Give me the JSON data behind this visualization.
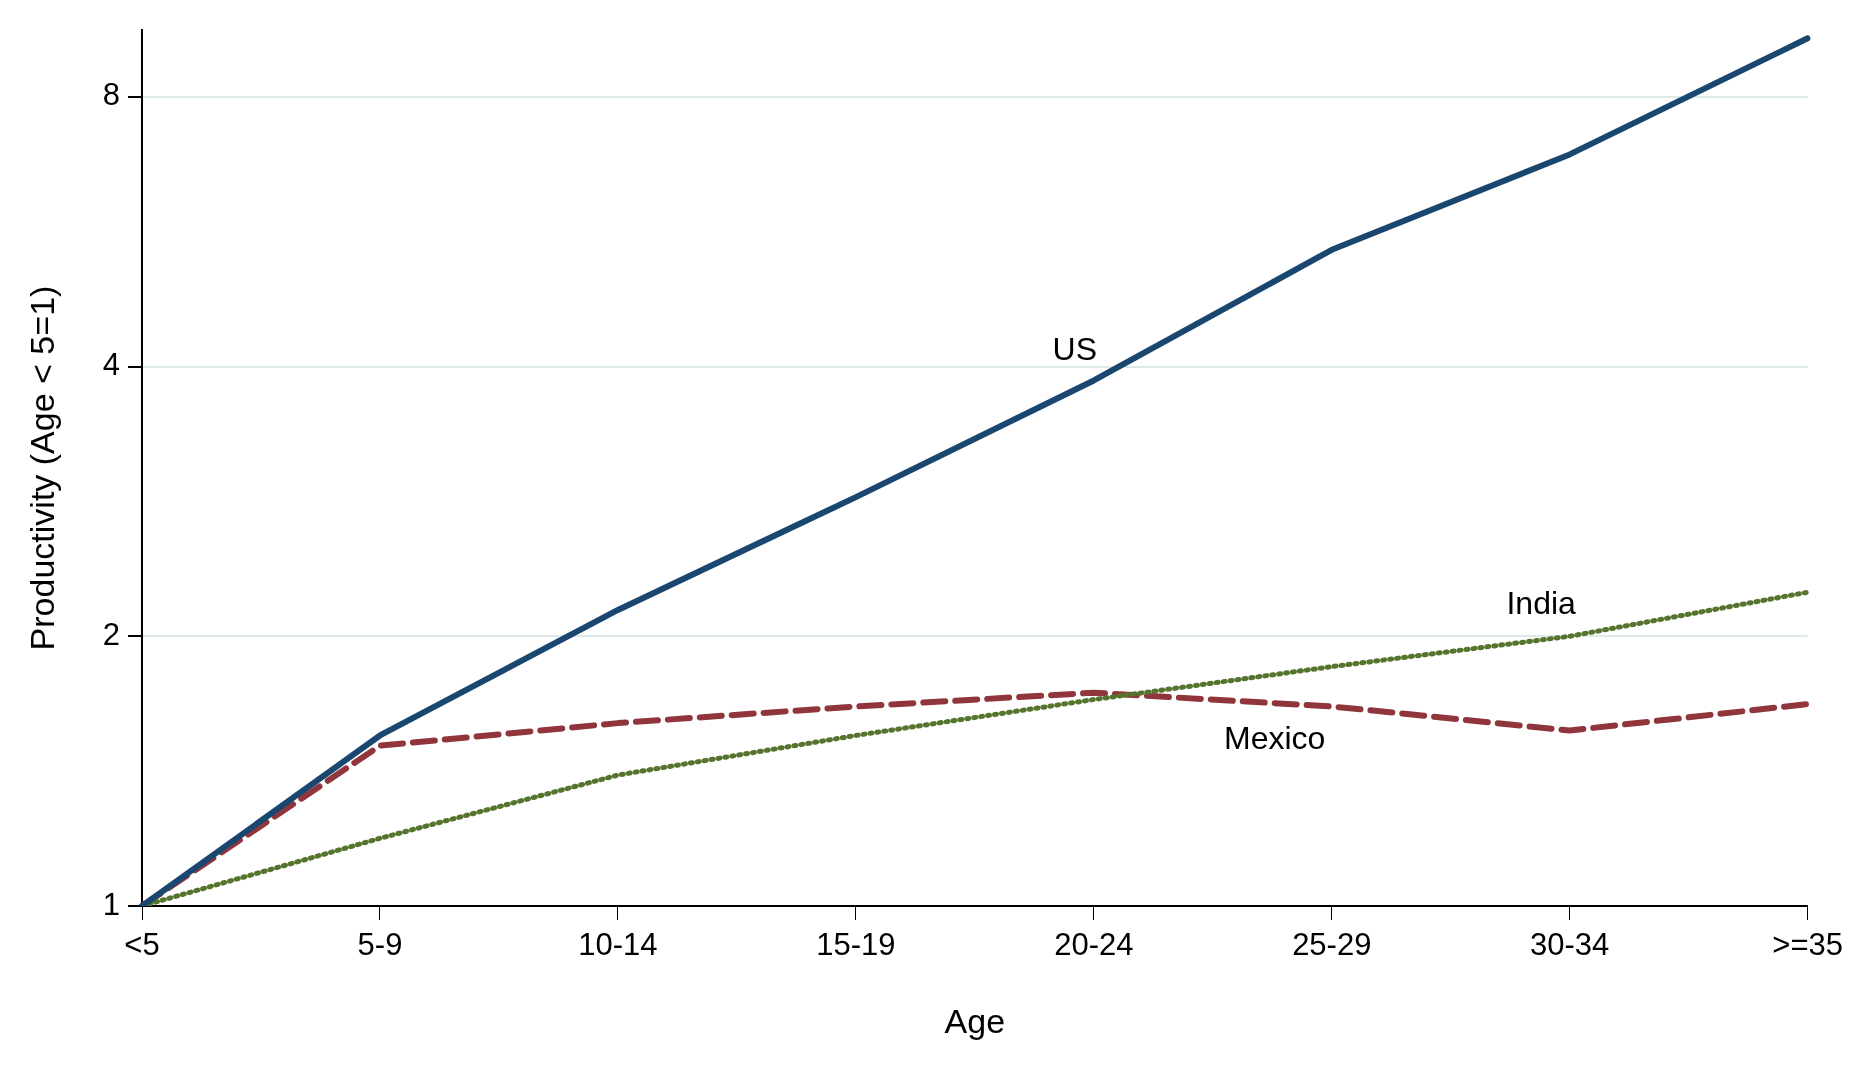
{
  "chart_data": {
    "type": "line",
    "xlabel": "Age",
    "ylabel": "Productivity (Age < 5=1)",
    "log": "y",
    "grid": "y",
    "legend": false,
    "marker": "none",
    "categories": [
      "<5",
      "5-9",
      "10-14",
      "15-19",
      "20-24",
      "25-29",
      "30-34",
      ">=35"
    ],
    "ylim": [
      1,
      9.5
    ],
    "yticks": [
      1,
      2,
      4,
      8
    ],
    "series": [
      {
        "name": "US",
        "color": "#1a476f",
        "line_style": "solid",
        "values": [
          1,
          1.55,
          2.14,
          2.86,
          3.86,
          5.4,
          6.9,
          9.3
        ]
      },
      {
        "name": "India",
        "color": "#55752f",
        "line_style": "dotted",
        "values": [
          1,
          1.19,
          1.4,
          1.55,
          1.7,
          1.85,
          2.0,
          2.24
        ]
      },
      {
        "name": "Mexico",
        "color": "#90353b",
        "line_style": "dashed",
        "values": [
          1,
          1.51,
          1.6,
          1.67,
          1.73,
          1.67,
          1.57,
          1.68
        ]
      }
    ]
  }
}
